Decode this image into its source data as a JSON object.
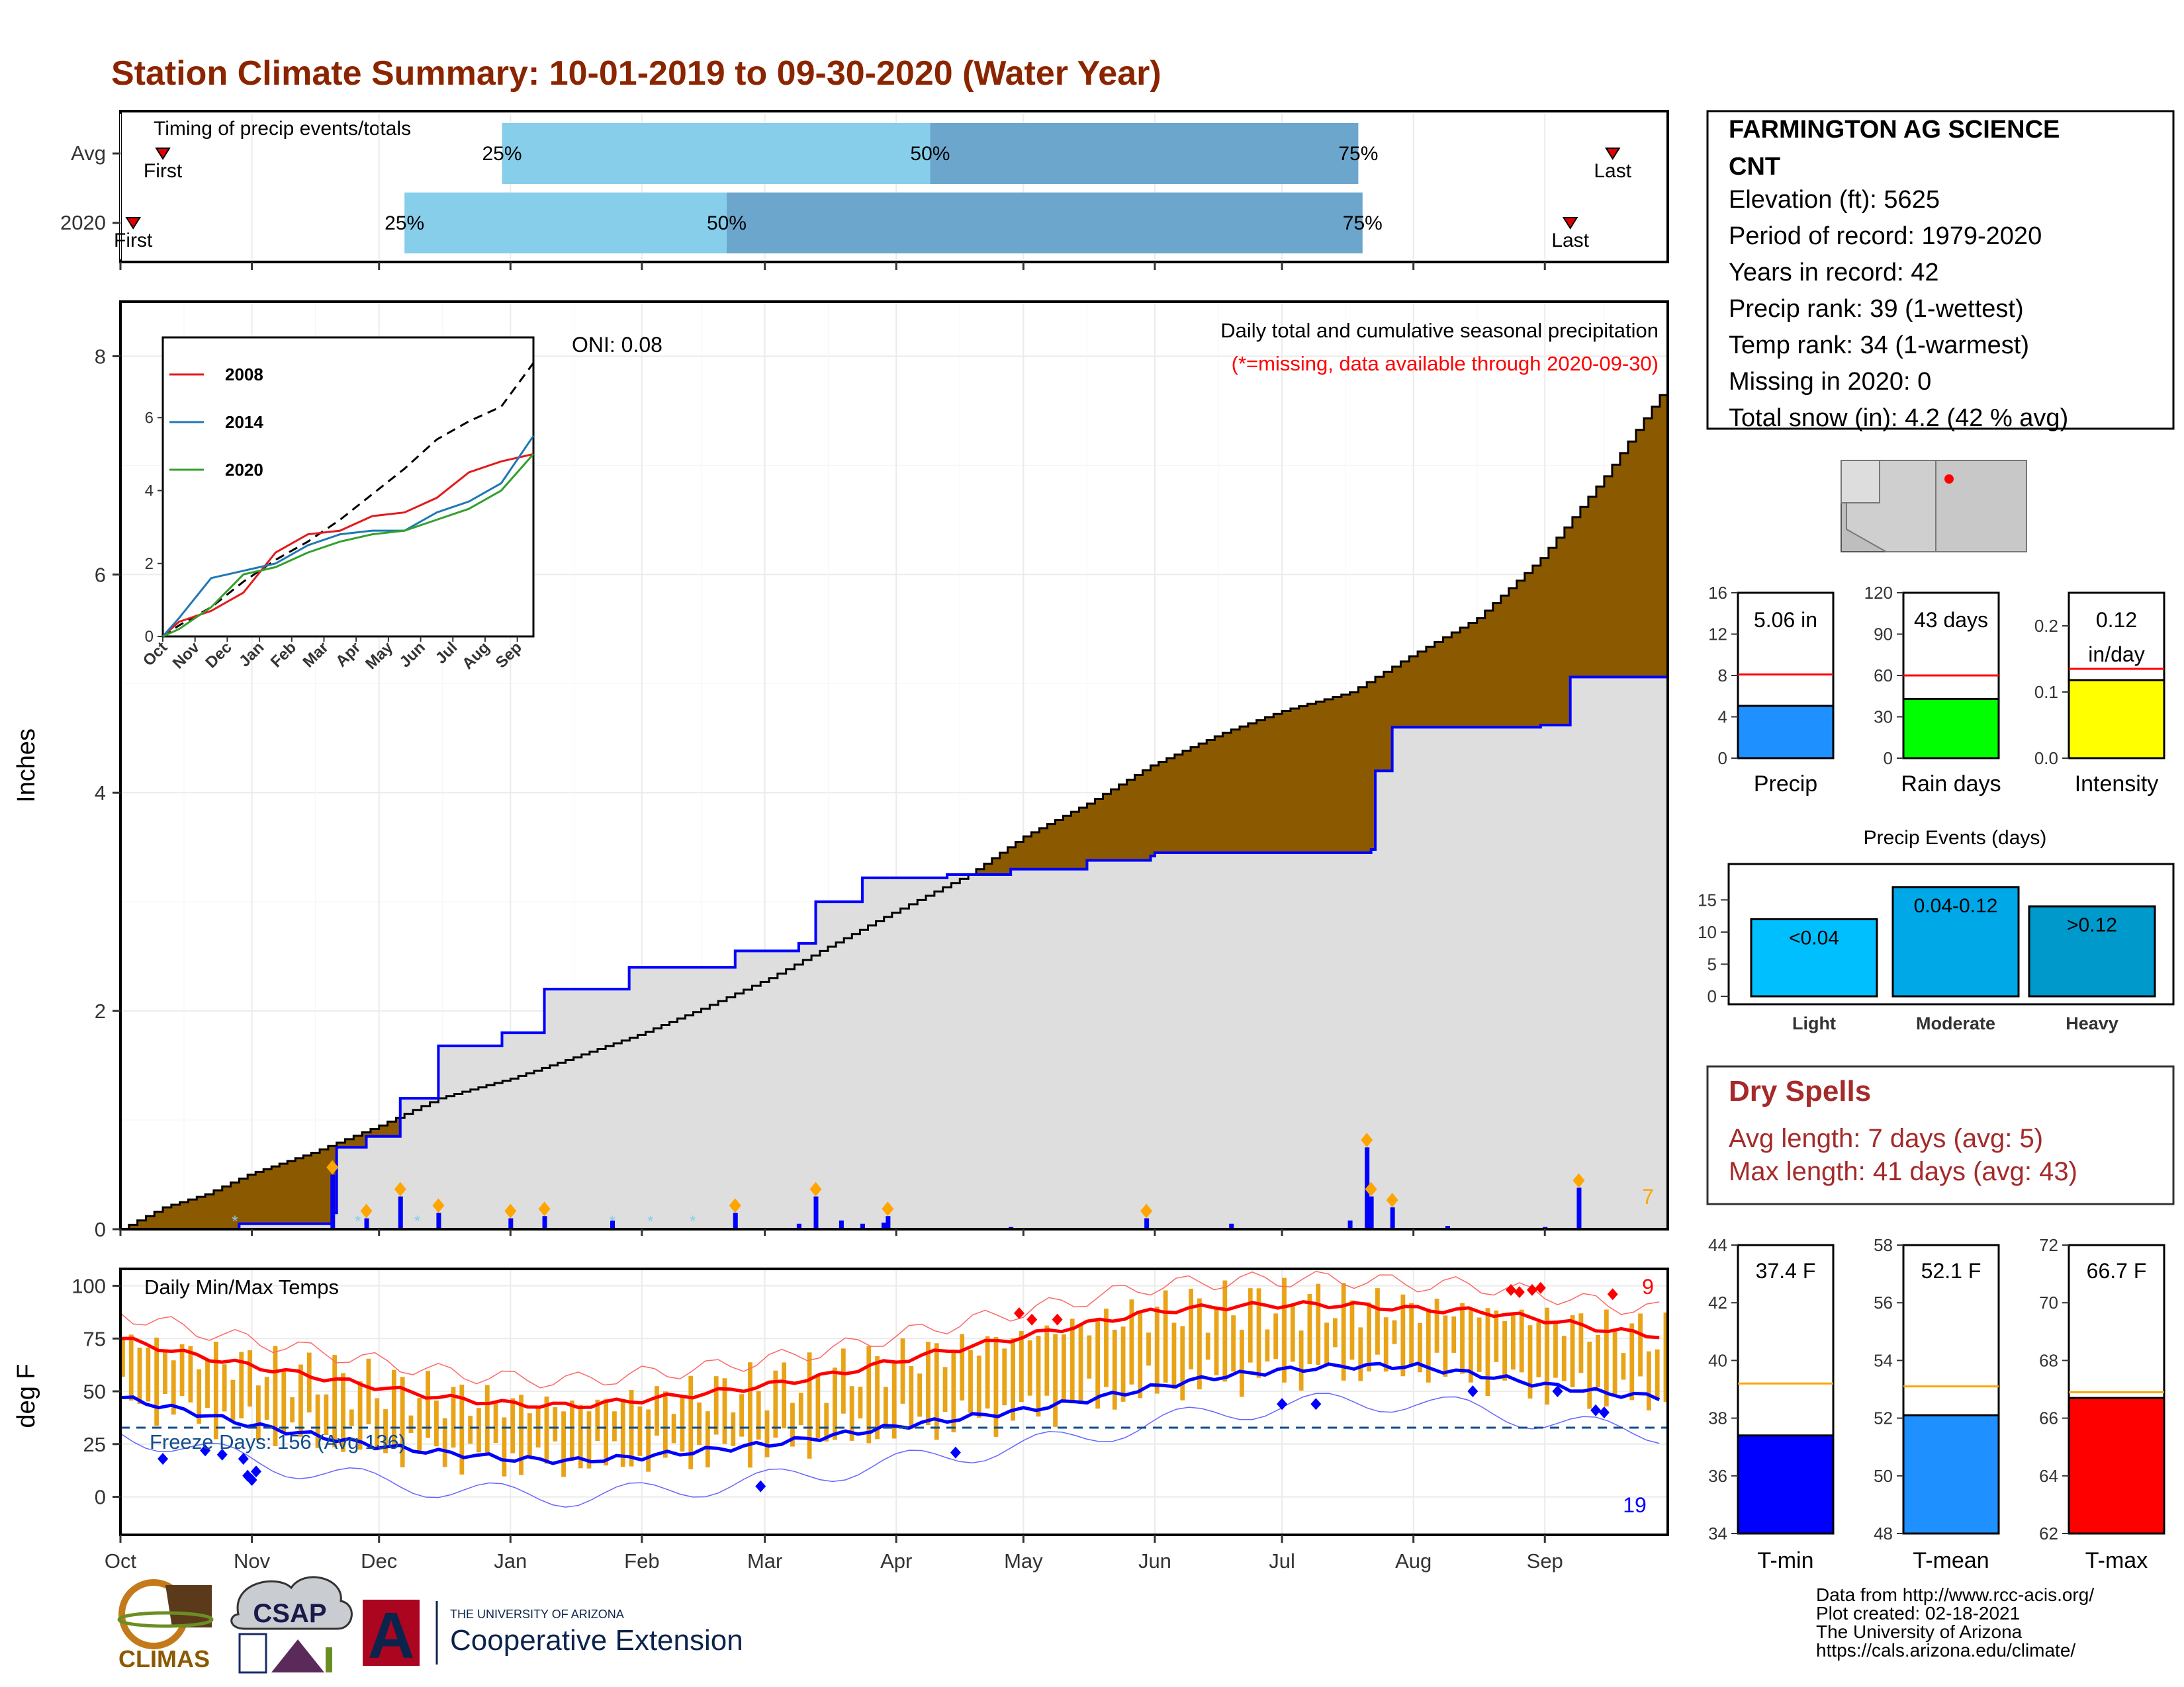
{
  "page": {
    "title": "Station Climate Summary: 10-01-2019 to 09-30-2020 (Water Year)"
  },
  "colors": {
    "title": "#8B2500",
    "cum_avg": "#8B5A00",
    "cum_obs": "#0000FF",
    "pct_light": "#87CEEB",
    "pct_dark": "#6CA6CD",
    "temp_bar": "#E8A317",
    "tmax": "#FF0000",
    "tmin": "#0000FF",
    "dry_spells": "#A52A2A"
  },
  "months": [
    "Oct",
    "Nov",
    "Dec",
    "Jan",
    "Feb",
    "Mar",
    "Apr",
    "May",
    "Jun",
    "Jul",
    "Aug",
    "Sep"
  ],
  "timing": {
    "title": "Timing of precip events/totals",
    "rows": [
      {
        "label": "Avg",
        "first": 10,
        "p25": 90,
        "p50": 191,
        "p75": 292,
        "last": 352,
        "first_label": "First",
        "p25_label": "25%",
        "p50_label": "50%",
        "p75_label": "75%",
        "last_label": "Last"
      },
      {
        "label": "2020",
        "first": 3,
        "p25": 67,
        "p50": 143,
        "p75": 293,
        "last": 342,
        "first_label": "First",
        "p25_label": "25%",
        "p50_label": "50%",
        "p75_label": "75%",
        "last_label": "Last"
      }
    ]
  },
  "precip": {
    "ylabel": "Inches",
    "oni": "ONI: 0.08",
    "note1": "Daily total and cumulative seasonal precipitation",
    "note2": "(*=missing, data available through 2020-09-30)",
    "count_label": "7",
    "yticks": [
      "0",
      "2",
      "4",
      "6",
      "8"
    ]
  },
  "inset": {
    "yticks": [
      "0",
      "2",
      "4",
      "6"
    ],
    "xticks": [
      "Oct",
      "Nov",
      "Dec",
      "Jan",
      "Feb",
      "Mar",
      "Apr",
      "May",
      "Jun",
      "Jul",
      "Aug",
      "Sep"
    ],
    "legend": [
      {
        "label": "2008",
        "color": "#E31A1C"
      },
      {
        "label": "2014",
        "color": "#1F78B4"
      },
      {
        "label": "2020",
        "color": "#33A02C"
      }
    ]
  },
  "temps": {
    "title": "Daily Min/Max Temps",
    "ylabel": "deg F",
    "freeze": "Freeze Days: 156 (Avg 136)",
    "max_count": "9",
    "min_count": "19",
    "yticks": [
      "0",
      "25",
      "50",
      "75",
      "100"
    ]
  },
  "station": {
    "name": "FARMINGTON AG SCIENCE",
    "name2": "CNT",
    "lines": [
      "Elevation (ft): 5625",
      "Period of record: 1979-2020",
      "Years in record: 42",
      "Precip rank: 39 (1-wettest)",
      "Temp rank: 34 (1-warmest)",
      "Missing in 2020: 0",
      "Total snow (in): 4.2 (42 % avg)"
    ]
  },
  "mini_precip": [
    {
      "label": "Precip",
      "value_label": "5.06 in",
      "value_label2": "",
      "value": 5.06,
      "avg": 8.1,
      "ymax": 16,
      "yticks": [
        "0",
        "4",
        "8",
        "12",
        "16"
      ],
      "color": "#1E90FF"
    },
    {
      "label": "Rain days",
      "value_label": "43 days",
      "value_label2": "",
      "value": 43,
      "avg": 60,
      "ymax": 120,
      "yticks": [
        "0",
        "30",
        "60",
        "90",
        "120"
      ],
      "color": "#00FF00"
    },
    {
      "label": "Intensity",
      "value_label": "0.12",
      "value_label2": "in/day",
      "value": 0.118,
      "avg": 0.135,
      "ymax": 0.25,
      "yticks": [
        "0.0",
        "0.1",
        "0.2"
      ],
      "color": "#FFFF00"
    }
  ],
  "events": {
    "title": "Precip Events (days)",
    "yticks": [
      "0",
      "5",
      "10",
      "15"
    ],
    "bars": [
      {
        "label": "Light",
        "value_label": "<0.04",
        "value": 12,
        "color": "#00BFFF"
      },
      {
        "label": "Moderate",
        "value_label": "0.04-0.12",
        "value": 17,
        "color": "#00A8E8"
      },
      {
        "label": "Heavy",
        "value_label": ">0.12",
        "value": 14,
        "color": "#0099CC"
      }
    ]
  },
  "dry": {
    "title": "Dry Spells",
    "line1": "Avg length: 7 days (avg: 5)",
    "line2": "Max length: 41 days (avg: 43)"
  },
  "mini_temp": [
    {
      "label": "T-min",
      "value_label": "37.4 F",
      "value": 37.4,
      "avg": 39.2,
      "ymin": 34,
      "ymax": 44,
      "yticks": [
        "34",
        "36",
        "38",
        "40",
        "42",
        "44"
      ],
      "color": "#0000FF"
    },
    {
      "label": "T-mean",
      "value_label": "52.1 F",
      "value": 52.1,
      "avg": 53.1,
      "ymin": 48,
      "ymax": 58,
      "yticks": [
        "48",
        "50",
        "52",
        "54",
        "56",
        "58"
      ],
      "color": "#1E90FF"
    },
    {
      "label": "T-max",
      "value_label": "66.7 F",
      "value": 66.7,
      "avg": 66.9,
      "ymin": 62,
      "ymax": 72,
      "yticks": [
        "62",
        "64",
        "66",
        "68",
        "70",
        "72"
      ],
      "color": "#FF0000"
    }
  ],
  "footer": {
    "lines": [
      "Data from http://www.rcc-acis.org/",
      "Plot created: 02-18-2021",
      "The University of Arizona",
      "https://cals.arizona.edu/climate/"
    ]
  },
  "logos": {
    "climas": "CLIMAS",
    "csap": "CSAP",
    "ua_small": "THE UNIVERSITY OF ARIZONA",
    "ua_big": "Cooperative Extension",
    "ua_letter": "A"
  },
  "chart_data": [
    {
      "type": "area",
      "title": "Daily total and cumulative seasonal precipitation",
      "ylabel": "Inches",
      "ylim": [
        0,
        8.5
      ],
      "x_unit": "day of water year (0 = Oct 1)",
      "series": [
        {
          "name": "average cumulative",
          "x": [
            0,
            10,
            20,
            30,
            45,
            61,
            75,
            92,
            105,
            122,
            137,
            153,
            165,
            182,
            200,
            213,
            228,
            243,
            260,
            274,
            290,
            304,
            320,
            335,
            350,
            365
          ],
          "y": [
            0,
            0.2,
            0.32,
            0.5,
            0.7,
            0.95,
            1.2,
            1.38,
            1.55,
            1.78,
            2.02,
            2.3,
            2.55,
            2.9,
            3.25,
            3.6,
            3.9,
            4.25,
            4.55,
            4.75,
            4.92,
            5.25,
            5.6,
            6.15,
            6.9,
            7.75
          ]
        },
        {
          "name": "2020 cumulative",
          "x": [
            0,
            28,
            50,
            51,
            58,
            66,
            75,
            90,
            100,
            120,
            145,
            160,
            164,
            175,
            195,
            210,
            228,
            243,
            244,
            262,
            274,
            295,
            296,
            300,
            320,
            335,
            342,
            365
          ],
          "y": [
            0,
            0.05,
            0.15,
            0.75,
            0.85,
            1.2,
            1.68,
            1.8,
            2.2,
            2.4,
            2.55,
            2.62,
            3.0,
            3.22,
            3.25,
            3.3,
            3.38,
            3.42,
            3.45,
            3.45,
            3.45,
            3.48,
            4.2,
            4.6,
            4.6,
            4.62,
            5.06,
            5.06
          ]
        }
      ],
      "daily_precip": {
        "day": [
          50,
          58,
          66,
          75,
          92,
          100,
          116,
          145,
          160,
          164,
          170,
          175,
          180,
          181,
          210,
          242,
          262,
          290,
          294,
          295,
          300,
          313,
          336,
          344
        ],
        "value": [
          0.5,
          0.1,
          0.3,
          0.15,
          0.1,
          0.12,
          0.08,
          0.15,
          0.05,
          0.3,
          0.08,
          0.05,
          0.06,
          0.12,
          0.02,
          0.1,
          0.05,
          0.08,
          0.75,
          0.3,
          0.2,
          0.03,
          0.02,
          0.38
        ]
      }
    },
    {
      "type": "line",
      "title": "Daily Min/Max Temps",
      "ylabel": "deg F",
      "ylim": [
        -18,
        108
      ],
      "x_unit": "day of water year (0 = Oct 1)",
      "series": [
        {
          "name": "avg max",
          "x": [
            0,
            15,
            31,
            46,
            61,
            76,
            92,
            107,
            123,
            138,
            153,
            168,
            182,
            197,
            213,
            228,
            244,
            259,
            274,
            289,
            305,
            320,
            336,
            351,
            365
          ],
          "y": [
            75,
            68,
            62,
            57,
            52,
            47,
            44,
            43,
            46,
            49,
            53,
            58,
            64,
            70,
            76,
            82,
            88,
            90,
            91,
            91,
            89,
            88,
            84,
            79,
            76
          ]
        },
        {
          "name": "avg min",
          "x": [
            0,
            15,
            31,
            46,
            61,
            76,
            92,
            107,
            123,
            138,
            153,
            168,
            182,
            197,
            213,
            228,
            244,
            259,
            274,
            289,
            305,
            320,
            336,
            351,
            365
          ],
          "y": [
            47,
            41,
            34,
            29,
            24,
            21,
            18,
            17,
            19,
            22,
            25,
            29,
            33,
            37,
            41,
            46,
            52,
            57,
            60,
            62,
            62,
            58,
            53,
            49,
            47
          ]
        }
      ]
    },
    {
      "type": "line",
      "title": "",
      "xlabel": "",
      "ylim": [
        0,
        8.2
      ],
      "x": [
        "Oct",
        "Nov",
        "Dec",
        "Jan",
        "Feb",
        "Mar",
        "Apr",
        "May",
        "Jun",
        "Jul",
        "Aug",
        "Sep"
      ],
      "series": [
        {
          "name": "",
          "values": [
            0.3,
            0.8,
            1.5,
            2.1,
            2.6,
            3.2,
            3.9,
            4.6,
            5.4,
            5.9,
            6.3,
            7.5
          ]
        },
        {
          "name": "2008",
          "values": [
            0.4,
            0.7,
            1.2,
            2.3,
            2.8,
            2.9,
            3.3,
            3.4,
            3.8,
            4.5,
            4.8,
            5.0
          ]
        },
        {
          "name": "2014",
          "values": [
            0.5,
            1.6,
            1.8,
            2.0,
            2.5,
            2.8,
            2.9,
            2.9,
            3.4,
            3.7,
            4.2,
            5.5
          ]
        },
        {
          "name": "2020",
          "values": [
            0.2,
            0.8,
            1.7,
            1.9,
            2.3,
            2.6,
            2.8,
            2.9,
            3.2,
            3.5,
            4.0,
            5.0
          ]
        }
      ]
    },
    {
      "type": "bar",
      "categories": [
        "Light",
        "Moderate",
        "Heavy"
      ],
      "values": [
        12,
        17,
        14
      ],
      "title": "Precip Events (days)",
      "ylim": [
        0,
        18
      ]
    },
    {
      "type": "bar",
      "categories": [
        "Precip",
        "Rain days",
        "Intensity"
      ],
      "series": [
        {
          "name": "",
          "values": [
            5.06,
            43,
            0.12
          ]
        },
        {
          "name": "",
          "values": [
            8.1,
            60,
            0.135
          ]
        }
      ]
    },
    {
      "type": "bar",
      "categories": [
        "T-min",
        "T-mean",
        "T-max"
      ],
      "series": [
        {
          "name": "",
          "values": [
            37.4,
            52.1,
            66.7
          ]
        },
        {
          "name": "",
          "values": [
            39.2,
            53.1,
            66.9
          ]
        }
      ]
    }
  ]
}
